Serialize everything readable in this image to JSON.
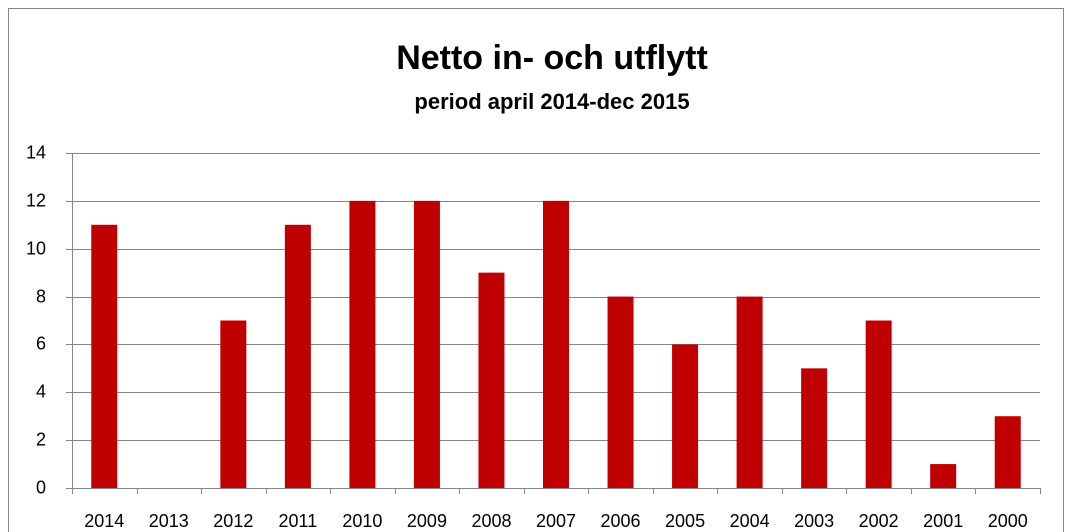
{
  "chart_data": {
    "type": "bar",
    "title": "Netto in- och utflytt",
    "subtitle": "period april 2014-dec 2015",
    "categories": [
      "2014",
      "2013",
      "2012",
      "2011",
      "2010",
      "2009",
      "2008",
      "2007",
      "2006",
      "2005",
      "2004",
      "2003",
      "2002",
      "2001",
      "2000"
    ],
    "values": [
      11,
      0,
      7,
      11,
      12,
      12,
      9,
      12,
      8,
      6,
      8,
      5,
      7,
      1,
      3
    ],
    "color": "#c00000",
    "ylim": [
      0,
      14
    ],
    "yticks": [
      0,
      2,
      4,
      6,
      8,
      10,
      12,
      14
    ],
    "grid": true
  }
}
